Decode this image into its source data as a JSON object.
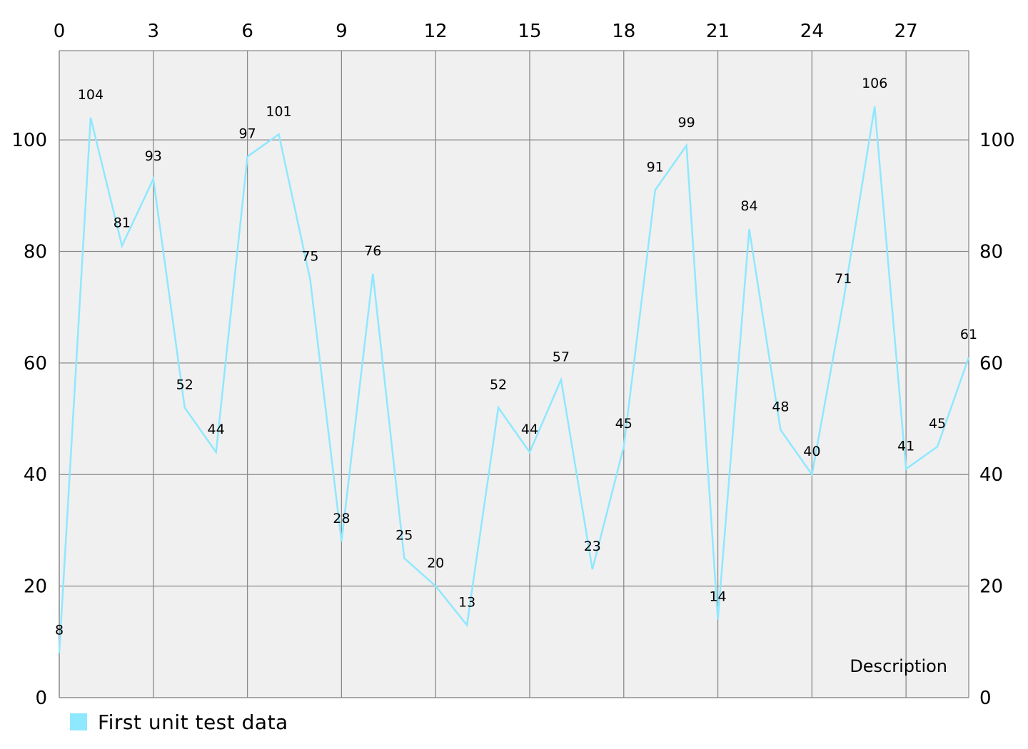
{
  "chart_data": {
    "type": "line",
    "title": "",
    "description": "Description",
    "x": [
      0,
      1,
      2,
      3,
      4,
      5,
      6,
      7,
      8,
      9,
      10,
      11,
      12,
      13,
      14,
      15,
      16,
      17,
      18,
      19,
      20,
      21,
      22,
      23,
      24,
      25,
      26,
      27,
      28,
      29
    ],
    "series": [
      {
        "name": "First unit test data",
        "color": "#8ee8ff",
        "values": [
          8,
          104,
          81,
          93,
          52,
          44,
          97,
          101,
          75,
          28,
          76,
          25,
          20,
          13,
          52,
          44,
          57,
          23,
          45,
          91,
          99,
          14,
          84,
          48,
          40,
          71,
          106,
          41,
          45,
          61
        ]
      }
    ],
    "xlim": [
      0,
      29
    ],
    "ylim": [
      0,
      116
    ],
    "x_ticks": [
      0,
      3,
      6,
      9,
      12,
      15,
      18,
      21,
      24,
      27
    ],
    "y_ticks": [
      0,
      20,
      40,
      60,
      80,
      100
    ],
    "x_axis_position": "top",
    "y_axis_position": "left and right",
    "grid": true,
    "legend_position": "bottom-left",
    "plot_background": "#f0f0f0",
    "grid_color": "#8a8a8a"
  }
}
